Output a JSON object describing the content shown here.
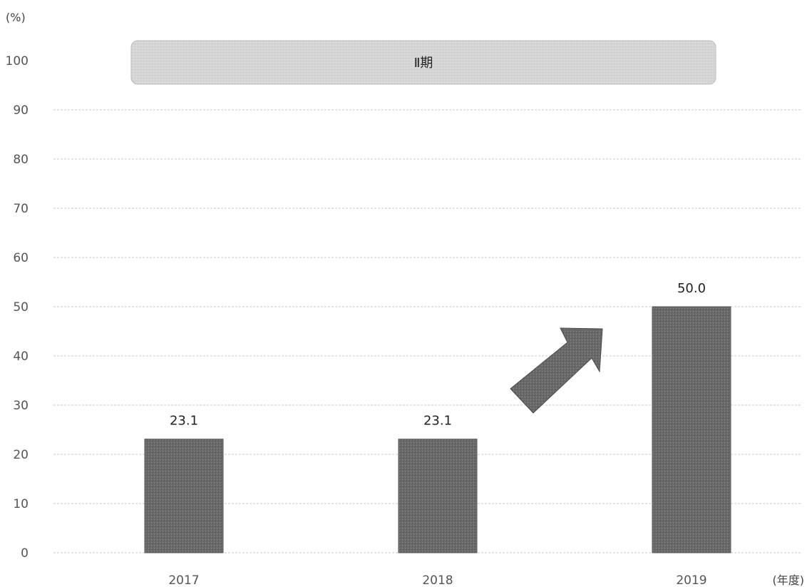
{
  "chart_data": {
    "type": "bar",
    "categories": [
      "2017",
      "2018",
      "2019"
    ],
    "values": [
      23.1,
      23.1,
      50.0
    ],
    "data_labels": [
      "23.1",
      "23.1",
      "50.0"
    ],
    "y_unit": "(%)",
    "x_unit": "(年度)",
    "ylim": [
      0,
      100
    ],
    "yticks": [
      0,
      10,
      20,
      30,
      40,
      50,
      60,
      70,
      80,
      90,
      100
    ],
    "grid": true,
    "legend": "none",
    "period_banner": "Ⅱ期",
    "annotation": "up-right arrow between 2018 and 2019 bars",
    "bar_color": "#666666",
    "banner_color": "#d3d3d3",
    "grid_color": "#c8c8c8"
  }
}
